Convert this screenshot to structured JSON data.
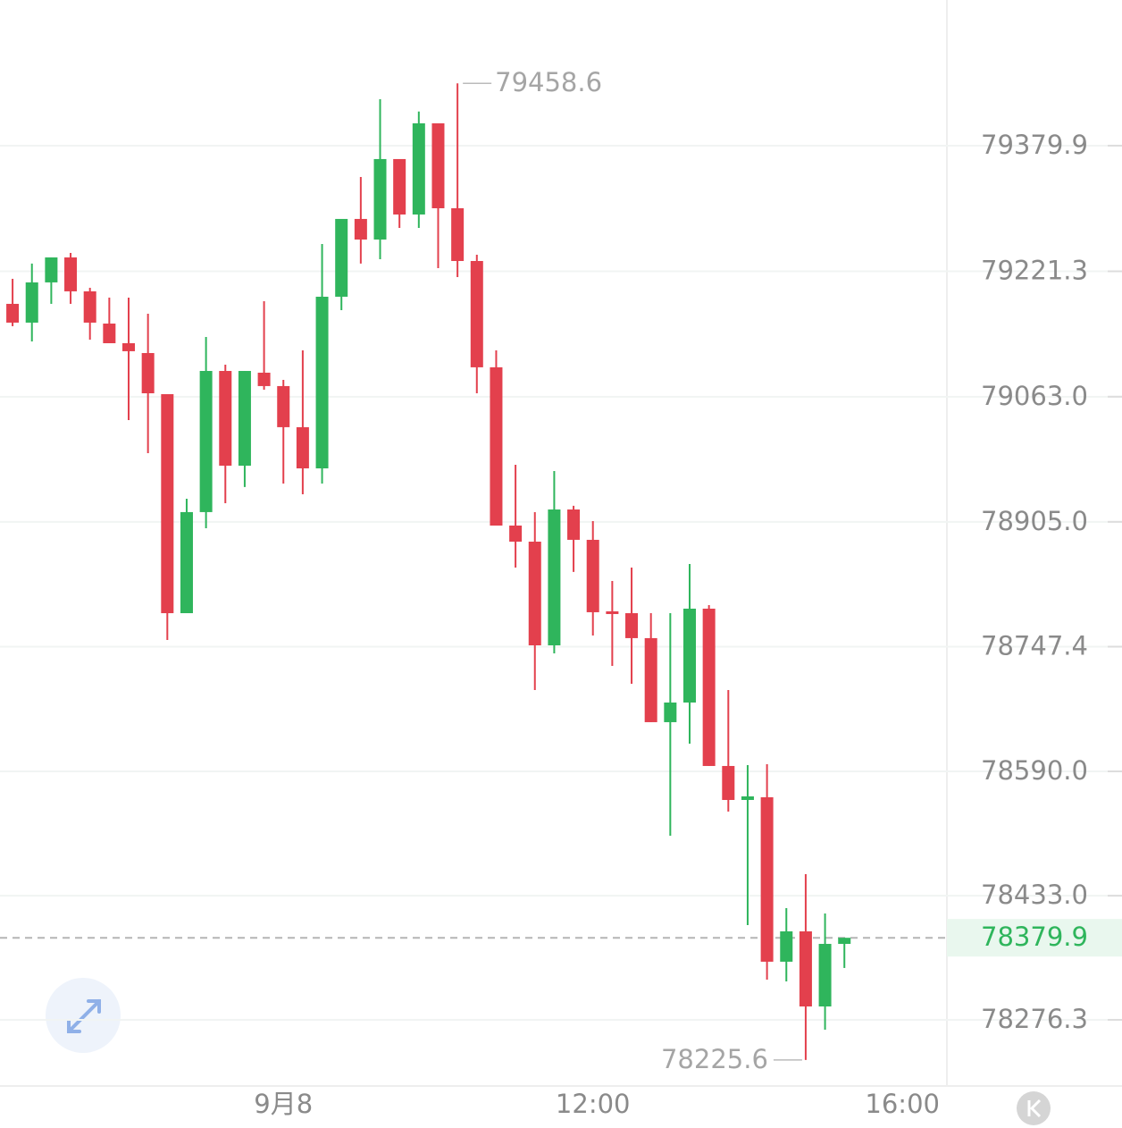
{
  "chart_data": {
    "type": "candlestick",
    "open": [
      79180.2,
      79156.5,
      79207.3,
      79238.8,
      79196.0,
      79155.3,
      79130.5,
      79118.1,
      79066.2,
      78789.7,
      78917.3,
      79095.5,
      78975.9,
      79093.3,
      79076.4,
      79024.5,
      78972.5,
      79189.2,
      79287.4,
      79261.4,
      79363.0,
      79293.0,
      79408.1,
      79300.9,
      79234.3,
      79100.1,
      78900.3,
      78880.0,
      78749.1,
      78920.6,
      78882.3,
      78792.0,
      78789.7,
      78758.2,
      78652.1,
      78676.9,
      78795.4,
      78596.8,
      78553.9,
      78557.3,
      78349.7,
      78388.0,
      78293.2,
      78372.2
    ],
    "high": [
      79211.8,
      79231.0,
      79238.8,
      79244.5,
      79200.5,
      79188.1,
      79188.1,
      79167.8,
      79066.2,
      78934.2,
      79138.4,
      79103.4,
      79095.5,
      79183.6,
      79084.3,
      79121.5,
      79255.8,
      79287.4,
      79340.4,
      79438.6,
      79363.0,
      79423.0,
      79408.1,
      79458.6,
      79242.2,
      79121.5,
      78977.1,
      78917.3,
      78969.2,
      78925.2,
      78906.0,
      78830.4,
      78847.3,
      78789.7,
      78789.7,
      78851.8,
      78799.9,
      78692.7,
      78597.9,
      78599.0,
      78417.4,
      78460.3,
      78410.6,
      78379.9
    ],
    "low": [
      79152.0,
      79132.8,
      79180.2,
      79180.2,
      79135.0,
      79130.5,
      79033.5,
      78991.7,
      78755.9,
      78789.7,
      78896.9,
      78928.5,
      78948.9,
      79071.8,
      78953.4,
      78939.8,
      78953.4,
      79172.3,
      79231.0,
      79236.6,
      79276.1,
      79276.1,
      79225.3,
      79214.0,
      79067.3,
      78900.3,
      78847.3,
      78692.7,
      78739.0,
      78841.7,
      78761.5,
      78723.2,
      78700.6,
      78652.1,
      78508.8,
      78625.0,
      78596.8,
      78539.2,
      78395.9,
      78327.1,
      78324.8,
      78225.6,
      78263.9,
      78341.8
    ],
    "close": [
      79156.5,
      79207.3,
      79238.8,
      79196.0,
      79156.5,
      79130.5,
      79120.4,
      79067.3,
      78789.7,
      78917.3,
      79095.5,
      78975.9,
      79095.5,
      79076.4,
      79024.5,
      78972.5,
      79189.2,
      79287.4,
      79261.4,
      79363.0,
      79293.0,
      79408.1,
      79300.9,
      79234.3,
      79100.1,
      78900.3,
      78880.0,
      78749.1,
      78920.6,
      78882.3,
      78790.9,
      78789.7,
      78758.2,
      78652.1,
      78676.9,
      78795.4,
      78596.8,
      78553.9,
      78558.4,
      78349.7,
      78388.0,
      78293.2,
      78372.2,
      78379.9
    ],
    "up_color": "#2fb55c",
    "down_color": "#e3404d",
    "xlim": [
      -0.65,
      48.3
    ],
    "xticks": [
      {
        "value": 14,
        "label": "9月8"
      },
      {
        "value": 30,
        "label": "12:00"
      },
      {
        "value": 46,
        "label": "16:00"
      }
    ],
    "ylim": [
      78192.8,
      79563.8
    ],
    "yticks": [
      79379.9,
      79221.3,
      {
        "value": 79063,
        "label": "79063.0"
      },
      {
        "value": 78905,
        "label": "78905.0"
      },
      78747.4,
      {
        "value": 78590,
        "label": "78590.0"
      },
      {
        "value": 78433,
        "label": "78433.0"
      },
      78276.3
    ],
    "grid": true
  }
}
